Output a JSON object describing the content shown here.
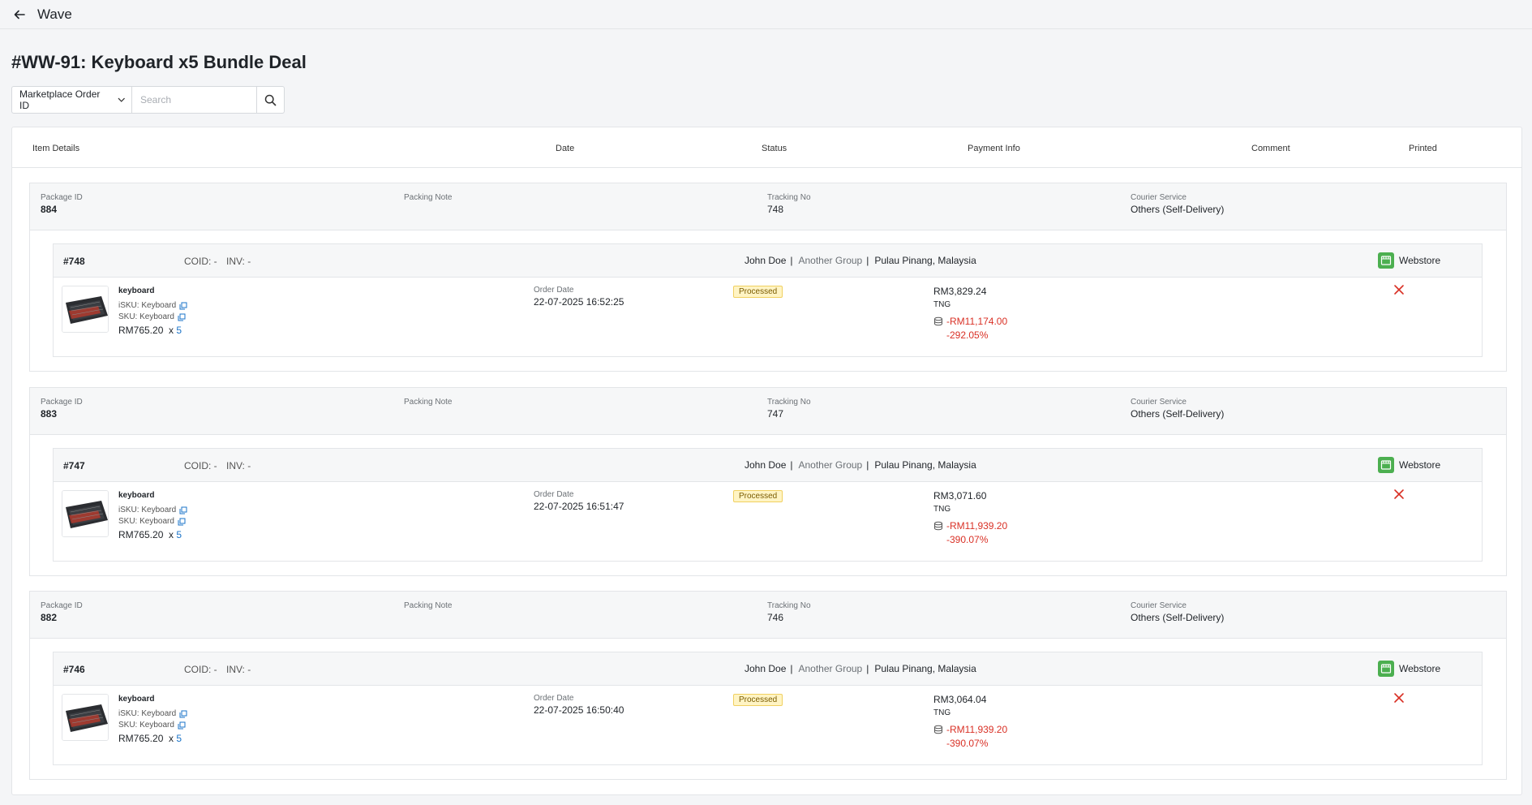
{
  "topbar": {
    "title": "Wave"
  },
  "page_title": "#WW-91: Keyboard x5 Bundle Deal",
  "search": {
    "filter_label": "Marketplace Order ID",
    "placeholder": "Search"
  },
  "table_headers": {
    "item_details": "Item Details",
    "date": "Date",
    "status": "Status",
    "payment_info": "Payment Info",
    "comment": "Comment",
    "printed": "Printed"
  },
  "labels": {
    "package_id": "Package ID",
    "packing_note": "Packing Note",
    "tracking_no": "Tracking No",
    "courier_service": "Courier Service",
    "order_date": "Order Date",
    "coid": "COID: -",
    "inv": "INV: -"
  },
  "packages": [
    {
      "package_id": "884",
      "packing_note": "",
      "tracking_no": "748",
      "courier": "Others (Self-Delivery)",
      "order": {
        "order_id": "#748",
        "customer": "John Doe",
        "group": "Another Group",
        "location": "Pulau Pinang, Malaysia",
        "store": "Webstore",
        "product": "keyboard",
        "isku": "iSKU: Keyboard",
        "sku": "SKU: Keyboard",
        "unit_price": "RM765.20",
        "qty": "5",
        "order_date": "22-07-2025 16:52:25",
        "status": "Processed",
        "amount": "RM3,829.24",
        "method": "TNG",
        "profit": "-RM11,174.00",
        "profit_pct": "-292.05%"
      }
    },
    {
      "package_id": "883",
      "packing_note": "",
      "tracking_no": "747",
      "courier": "Others (Self-Delivery)",
      "order": {
        "order_id": "#747",
        "customer": "John Doe",
        "group": "Another Group",
        "location": "Pulau Pinang, Malaysia",
        "store": "Webstore",
        "product": "keyboard",
        "isku": "iSKU: Keyboard",
        "sku": "SKU: Keyboard",
        "unit_price": "RM765.20",
        "qty": "5",
        "order_date": "22-07-2025 16:51:47",
        "status": "Processed",
        "amount": "RM3,071.60",
        "method": "TNG",
        "profit": "-RM11,939.20",
        "profit_pct": "-390.07%"
      }
    },
    {
      "package_id": "882",
      "packing_note": "",
      "tracking_no": "746",
      "courier": "Others (Self-Delivery)",
      "order": {
        "order_id": "#746",
        "customer": "John Doe",
        "group": "Another Group",
        "location": "Pulau Pinang, Malaysia",
        "store": "Webstore",
        "product": "keyboard",
        "isku": "iSKU: Keyboard",
        "sku": "SKU: Keyboard",
        "unit_price": "RM765.20",
        "qty": "5",
        "order_date": "22-07-2025 16:50:40",
        "status": "Processed",
        "amount": "RM3,064.04",
        "method": "TNG",
        "profit": "-RM11,939.20",
        "profit_pct": "-390.07%"
      }
    }
  ]
}
